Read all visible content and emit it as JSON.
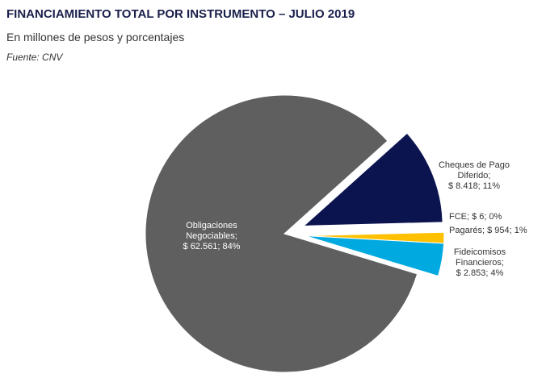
{
  "chart_data": {
    "type": "pie",
    "title": "FINANCIAMIENTO TOTAL POR INSTRUMENTO – JULIO 2019",
    "subtitle": "En millones de pesos y porcentajes",
    "source": "Fuente: CNV",
    "slices": [
      {
        "name": "Cheques de Pago Diferido",
        "value": 8418,
        "pct": "11%",
        "label": [
          "Cheques de Pago",
          "Diferido;",
          "$ 8.418; 11%"
        ],
        "color": "#0c1450",
        "exploded": true
      },
      {
        "name": "FCE",
        "value": 6,
        "pct": "0%",
        "label": [
          "FCE; $ 6; 0%"
        ],
        "color": "#d9d9d9",
        "exploded": true
      },
      {
        "name": "Pagarés",
        "value": 954,
        "pct": "1%",
        "label": [
          "Pagarés; $ 954; 1%"
        ],
        "color": "#ffc000",
        "exploded": true
      },
      {
        "name": "Fideicomisos Financieros",
        "value": 2853,
        "pct": "4%",
        "label": [
          "Fideicomisos",
          "Financieros;",
          "$ 2.853; 4%"
        ],
        "color": "#00a9e0",
        "exploded": true
      },
      {
        "name": "Obligaciones Negociables",
        "value": 62561,
        "pct": "84%",
        "label": [
          "Obligaciones",
          "Negociables;",
          "$ 62.561; 84%"
        ],
        "color": "#5f5f5f",
        "exploded": false
      }
    ]
  }
}
